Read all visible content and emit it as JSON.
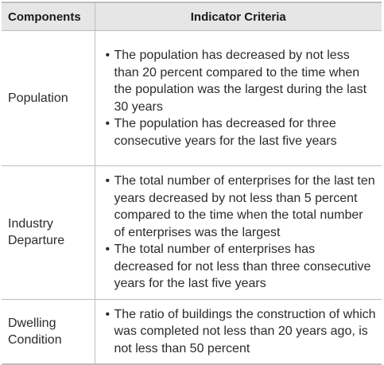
{
  "header": {
    "col1": "Components",
    "col2": "Indicator Criteria"
  },
  "rows": [
    {
      "component_lines": [
        "Population"
      ],
      "criteria": [
        "The population has decreased by not less than 20 percent compared to the time when the population was the largest during the last 30 years",
        "The population has decreased for three consecutive years for the last five years"
      ]
    },
    {
      "component_lines": [
        "Industry",
        "Departure"
      ],
      "criteria": [
        "The total number of enterprises for the last ten years decreased by not less than 5 percent compared to the time when the total number of enterprises was the largest",
        "The total number of enterprises has decreased for not less than three consecutive years for the last five years"
      ]
    },
    {
      "component_lines": [
        "Dwelling",
        "Condition"
      ],
      "criteria": [
        "The ratio of buildings the construction of which was completed not less than 20 years ago, is not less than 50 percent"
      ]
    }
  ]
}
